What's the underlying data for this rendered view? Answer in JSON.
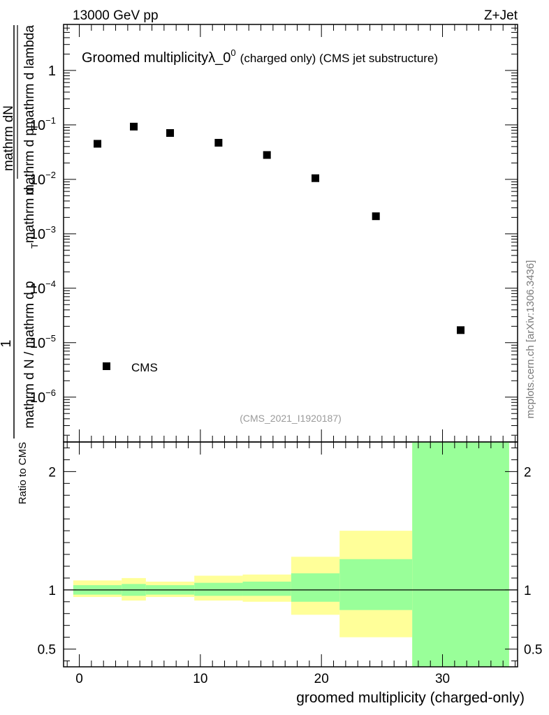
{
  "header": {
    "energy_label": "13000 GeV pp",
    "process_label": "Z+Jet"
  },
  "side_label": "mcplots.cern.ch [arXiv:1306.3436]",
  "analysis_label": "(CMS_2021_I1920187)",
  "chart_data": [
    {
      "type": "scatter",
      "title": "Groomed multiplicity",
      "title_suffix": "λ_0",
      "title_sup": "0",
      "title_note": "(charged only) (CMS jet substructure)",
      "ylabel_lines": [
        "1",
        "mathrm d N / mathrm d p",
        "T",
        "mathrm d",
        "mathrm dN",
        "mathrm d p",
        "T",
        "mathrm d lambda"
      ],
      "y_scale": "log",
      "ylim": [
        1.5e-07,
        7
      ],
      "xlim": [
        -1.3,
        36.2
      ],
      "y_ticks": [
        {
          "value": 1e-06,
          "base": "10",
          "exp": "−6"
        },
        {
          "value": 1e-05,
          "base": "10",
          "exp": "−5"
        },
        {
          "value": 0.0001,
          "base": "10",
          "exp": "−4"
        },
        {
          "value": 0.001,
          "base": "10",
          "exp": "−3"
        },
        {
          "value": 0.01,
          "base": "10",
          "exp": "−2"
        },
        {
          "value": 0.1,
          "base": "10",
          "exp": "−1"
        },
        {
          "value": 1,
          "base": "1",
          "exp": ""
        }
      ],
      "legend": {
        "entries": [
          "CMS"
        ],
        "placement": "bottom-left"
      },
      "series": [
        {
          "name": "CMS",
          "color": "#000000",
          "points": [
            {
              "x": 1.5,
              "y": 0.045
            },
            {
              "x": 4.5,
              "y": 0.093
            },
            {
              "x": 7.5,
              "y": 0.071
            },
            {
              "x": 11.5,
              "y": 0.047
            },
            {
              "x": 15.5,
              "y": 0.028
            },
            {
              "x": 19.5,
              "y": 0.0105
            },
            {
              "x": 24.5,
              "y": 0.0021
            },
            {
              "x": 31.5,
              "y": 1.7e-05
            }
          ]
        }
      ]
    },
    {
      "type": "area",
      "ylabel": "Ratio to CMS",
      "xlabel": "groomed multiplicity (charged-only)",
      "xlim": [
        -1.3,
        36.2
      ],
      "ylim": [
        0.35,
        2.25
      ],
      "x_ticks": [
        "0",
        "10",
        "20",
        "30"
      ],
      "x_tick_values": [
        0,
        10,
        20,
        30
      ],
      "y_ticks": [
        "0.5",
        "1",
        "2"
      ],
      "y_tick_values": [
        0.5,
        1,
        2
      ],
      "reference_line": 1,
      "colors": {
        "total_band": "#ffff99",
        "stat_band": "#99ff99",
        "line": "#000000"
      },
      "bins": [
        {
          "lo": -0.5,
          "hi": 3.5,
          "stat": [
            0.96,
            1.04
          ],
          "total": [
            0.94,
            1.08
          ]
        },
        {
          "lo": 3.5,
          "hi": 5.5,
          "stat": [
            0.95,
            1.05
          ],
          "total": [
            0.91,
            1.1
          ]
        },
        {
          "lo": 5.5,
          "hi": 9.5,
          "stat": [
            0.96,
            1.04
          ],
          "total": [
            0.94,
            1.07
          ]
        },
        {
          "lo": 9.5,
          "hi": 13.5,
          "stat": [
            0.95,
            1.06
          ],
          "total": [
            0.91,
            1.12
          ]
        },
        {
          "lo": 13.5,
          "hi": 17.5,
          "stat": [
            0.95,
            1.07
          ],
          "total": [
            0.9,
            1.13
          ]
        },
        {
          "lo": 17.5,
          "hi": 21.5,
          "stat": [
            0.9,
            1.14
          ],
          "total": [
            0.79,
            1.28
          ]
        },
        {
          "lo": 21.5,
          "hi": 27.5,
          "stat": [
            0.83,
            1.26
          ],
          "total": [
            0.6,
            1.5
          ]
        },
        {
          "lo": 27.5,
          "hi": 35.5,
          "stat": [
            0.35,
            2.25
          ],
          "total": [
            0.35,
            2.25
          ]
        }
      ]
    }
  ]
}
